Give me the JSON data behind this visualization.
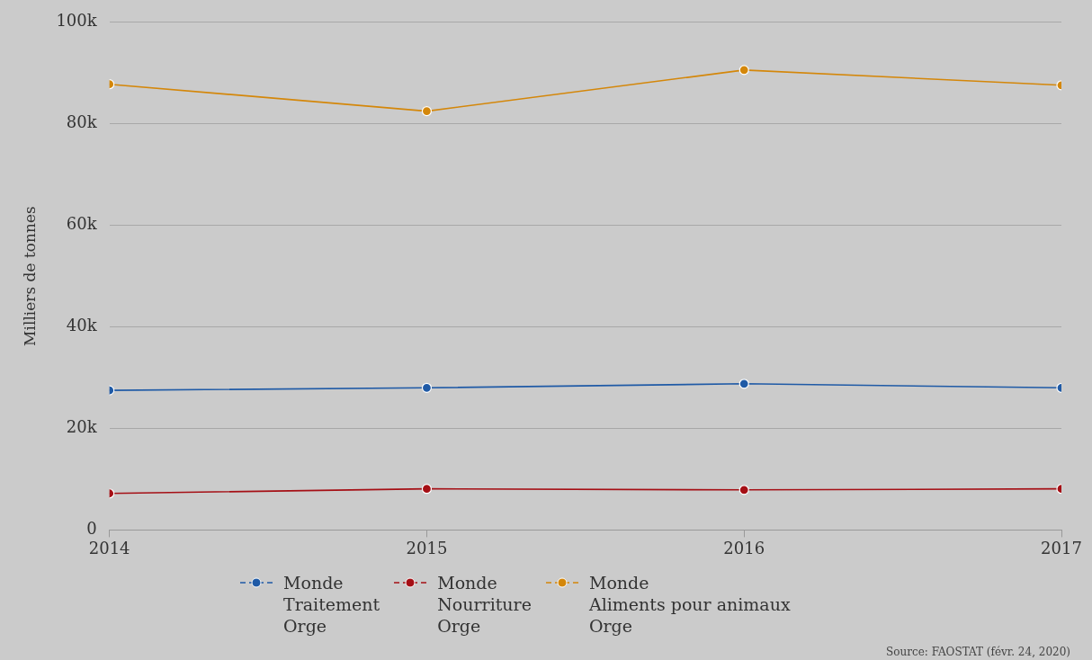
{
  "chart_data": {
    "type": "line",
    "ylabel": "Milliers de tonnes",
    "x": [
      2014,
      2015,
      2016,
      2017
    ],
    "xlim": [
      2014,
      2017
    ],
    "xticks": [
      2014,
      2015,
      2016,
      2017
    ],
    "ylim": [
      0,
      100000
    ],
    "yticks": [
      0,
      {
        "value": 20000,
        "label": "20k"
      },
      {
        "value": 40000,
        "label": "40k"
      },
      {
        "value": 60000,
        "label": "60k"
      },
      {
        "value": 80000,
        "label": "80k"
      },
      {
        "value": 100000,
        "label": "100k"
      }
    ],
    "series": [
      {
        "name": "Monde\nTraitement\nOrge",
        "color": "#1f5aa6",
        "values": [
          27500,
          28000,
          28800,
          28000
        ]
      },
      {
        "name": "Monde\nNourriture\nOrge",
        "color": "#a50f15",
        "values": [
          7200,
          8100,
          7900,
          8100
        ]
      },
      {
        "name": "Monde\nAliments pour animaux\nOrge",
        "color": "#d4870a",
        "values": [
          87800,
          82500,
          90600,
          87600
        ]
      }
    ],
    "grid": "y",
    "legend": "bottom",
    "marker": "circle",
    "line_style": "solid",
    "annotations": [
      "Source: FAOSTAT (févr. 24, 2020)"
    ]
  }
}
